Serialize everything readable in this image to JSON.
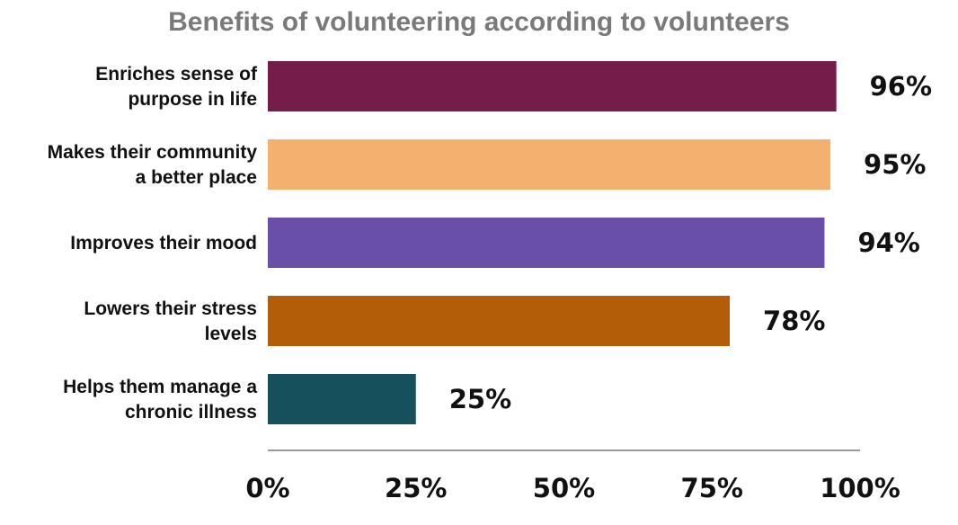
{
  "chart_data": {
    "type": "bar",
    "orientation": "horizontal",
    "title": "Benefits of volunteering according to volunteers",
    "categories": [
      [
        "Enriches sense of",
        "purpose in life"
      ],
      [
        "Makes their community",
        "a better place"
      ],
      [
        "Improves their mood"
      ],
      [
        "Lowers their stress",
        "levels"
      ],
      [
        "Helps them manage a",
        "chronic illness"
      ]
    ],
    "values": [
      96,
      95,
      94,
      78,
      25
    ],
    "value_labels": [
      "96%",
      "95%",
      "94%",
      "78%",
      "25%"
    ],
    "colors": [
      "#761c4a",
      "#f4b06e",
      "#6a4fa8",
      "#b35d08",
      "#15505c"
    ],
    "xlim": [
      0,
      100
    ],
    "x_ticks": [
      0,
      25,
      50,
      75,
      100
    ],
    "x_tick_labels": [
      "0%",
      "25%",
      "50%",
      "75%",
      "100%"
    ],
    "grid": false,
    "legend": "none",
    "xlabel": "",
    "ylabel": ""
  }
}
